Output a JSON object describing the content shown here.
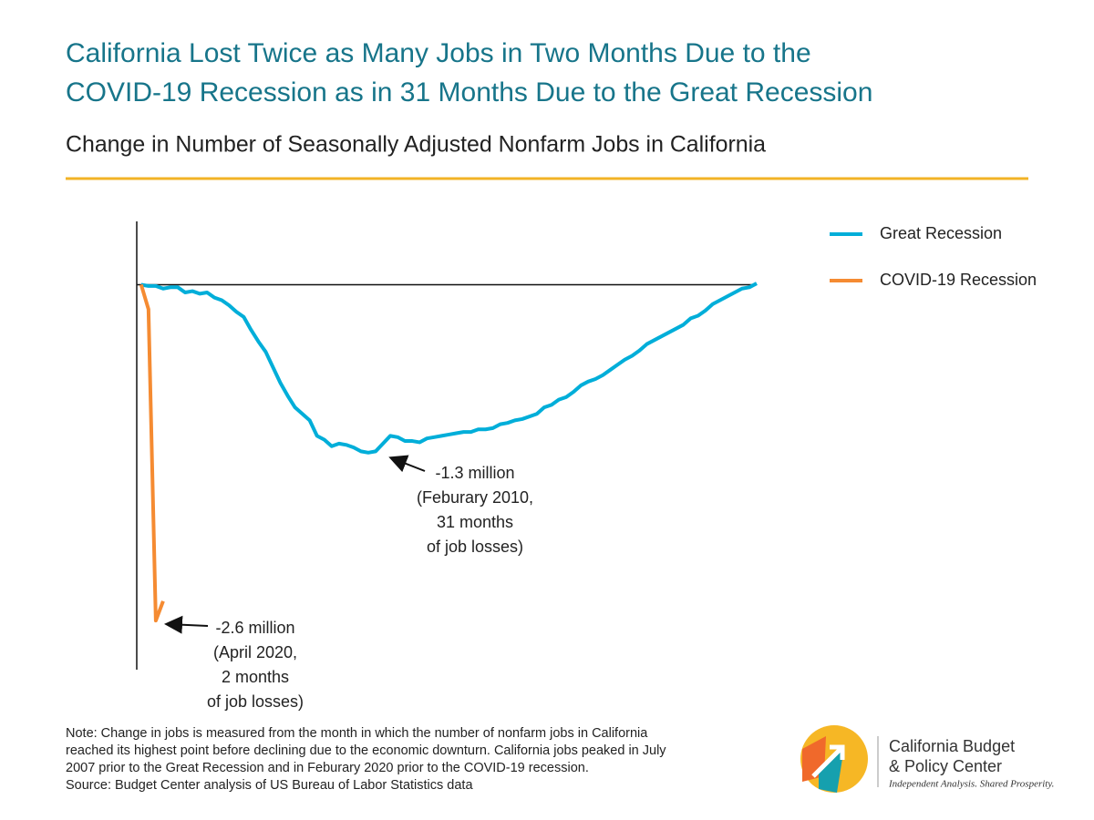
{
  "chart_data": {
    "type": "line",
    "title": [
      "California Lost Twice as Many Jobs in Two Months Due to the",
      "COVID-19 Recession as in 31 Months Due to the Great Recession"
    ],
    "subtitle": "Change in Number of Seasonally Adjusted Nonfarm Jobs in California",
    "xlim": [
      -0.6,
      84
    ],
    "ylim": [
      -2.98,
      0.49
    ],
    "series": [
      {
        "name": "Great Recession",
        "color": "#00aed9",
        "x": [
          0,
          1,
          2,
          3,
          4,
          5,
          6,
          7,
          8,
          9,
          10,
          11,
          12,
          13,
          14,
          15,
          16,
          17,
          18,
          19,
          20,
          21,
          22,
          23,
          24,
          25,
          26,
          27,
          28,
          29,
          30,
          31,
          32,
          33,
          34,
          35,
          36,
          37,
          38,
          39,
          40,
          41,
          42,
          43,
          44,
          45,
          46,
          47,
          48,
          49,
          50,
          51,
          52,
          53,
          54,
          55,
          56,
          57,
          58,
          59,
          60,
          61,
          62,
          63,
          64,
          65,
          66,
          67,
          68,
          69,
          70,
          71,
          72,
          73,
          74,
          75,
          76,
          77,
          78,
          79,
          80,
          81,
          82,
          83,
          84
        ],
        "values": [
          0,
          -0.01,
          -0.01,
          -0.03,
          -0.02,
          -0.02,
          -0.06,
          -0.05,
          -0.07,
          -0.06,
          -0.1,
          -0.12,
          -0.16,
          -0.21,
          -0.25,
          -0.35,
          -0.44,
          -0.52,
          -0.64,
          -0.76,
          -0.86,
          -0.95,
          -1.0,
          -1.05,
          -1.17,
          -1.2,
          -1.25,
          -1.23,
          -1.24,
          -1.26,
          -1.29,
          -1.3,
          -1.29,
          -1.23,
          -1.17,
          -1.18,
          -1.21,
          -1.21,
          -1.22,
          -1.19,
          -1.18,
          -1.17,
          -1.16,
          -1.15,
          -1.14,
          -1.14,
          -1.12,
          -1.12,
          -1.11,
          -1.08,
          -1.07,
          -1.05,
          -1.04,
          -1.02,
          -1.0,
          -0.95,
          -0.93,
          -0.89,
          -0.87,
          -0.83,
          -0.78,
          -0.75,
          -0.73,
          -0.7,
          -0.66,
          -0.62,
          -0.58,
          -0.55,
          -0.51,
          -0.46,
          -0.43,
          -0.4,
          -0.37,
          -0.34,
          -0.31,
          -0.26,
          -0.24,
          -0.2,
          -0.15,
          -0.12,
          -0.09,
          -0.06,
          -0.03,
          -0.02,
          0.01
        ]
      },
      {
        "name": "COVID-19 Recession",
        "color": "#f58b32",
        "x": [
          0,
          1,
          2,
          3
        ],
        "values": [
          0,
          -0.19,
          -2.6,
          -2.45
        ]
      }
    ],
    "annotations": [
      {
        "lines": [
          "-1.3 million",
          "(Feburary 2010,",
          "31 months",
          "of job losses)"
        ]
      },
      {
        "lines": [
          "-2.6 million",
          "(April 2020,",
          "2 months",
          "of job losses)"
        ]
      }
    ],
    "note": [
      "Note: Change in jobs is measured from the month in which the number of nonfarm jobs in California",
      "reached its highest point before declining due to the economic downturn. California jobs peaked in July",
      "2007 prior to the Great Recession and in Feburary 2020 prior to the COVID-19 recession.",
      "Source: Budget Center analysis of US Bureau of Labor Statistics data"
    ],
    "logo": [
      "California Budget",
      "& Policy Center",
      "Independent Analysis. Shared Prosperity."
    ]
  }
}
